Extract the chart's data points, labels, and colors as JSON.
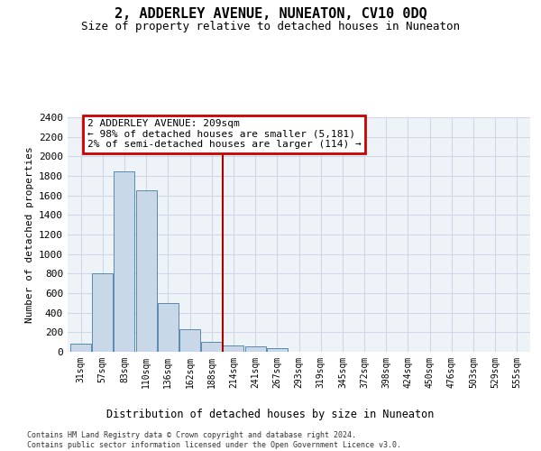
{
  "title": "2, ADDERLEY AVENUE, NUNEATON, CV10 0DQ",
  "subtitle": "Size of property relative to detached houses in Nuneaton",
  "xlabel": "Distribution of detached houses by size in Nuneaton",
  "ylabel": "Number of detached properties",
  "bin_labels": [
    "31sqm",
    "57sqm",
    "83sqm",
    "110sqm",
    "136sqm",
    "162sqm",
    "188sqm",
    "214sqm",
    "241sqm",
    "267sqm",
    "293sqm",
    "319sqm",
    "345sqm",
    "372sqm",
    "398sqm",
    "424sqm",
    "450sqm",
    "476sqm",
    "503sqm",
    "529sqm",
    "555sqm"
  ],
  "bar_values": [
    80,
    800,
    1850,
    1650,
    500,
    230,
    100,
    65,
    55,
    35,
    0,
    0,
    0,
    0,
    0,
    0,
    0,
    0,
    0,
    0,
    0
  ],
  "bar_color": "#c8d8e8",
  "bar_edge_color": "#5a8ab0",
  "grid_color": "#d0d8e8",
  "background_color": "#eef3f8",
  "vline_x": 6.5,
  "annotation_title": "2 ADDERLEY AVENUE: 209sqm",
  "annotation_line1": "← 98% of detached houses are smaller (5,181)",
  "annotation_line2": "2% of semi-detached houses are larger (114) →",
  "annotation_box_facecolor": "#ffffff",
  "annotation_border_color": "#cc0000",
  "vline_color": "#aa0000",
  "ylim": [
    0,
    2400
  ],
  "yticks": [
    0,
    200,
    400,
    600,
    800,
    1000,
    1200,
    1400,
    1600,
    1800,
    2000,
    2200,
    2400
  ],
  "footnote1": "Contains HM Land Registry data © Crown copyright and database right 2024.",
  "footnote2": "Contains public sector information licensed under the Open Government Licence v3.0."
}
